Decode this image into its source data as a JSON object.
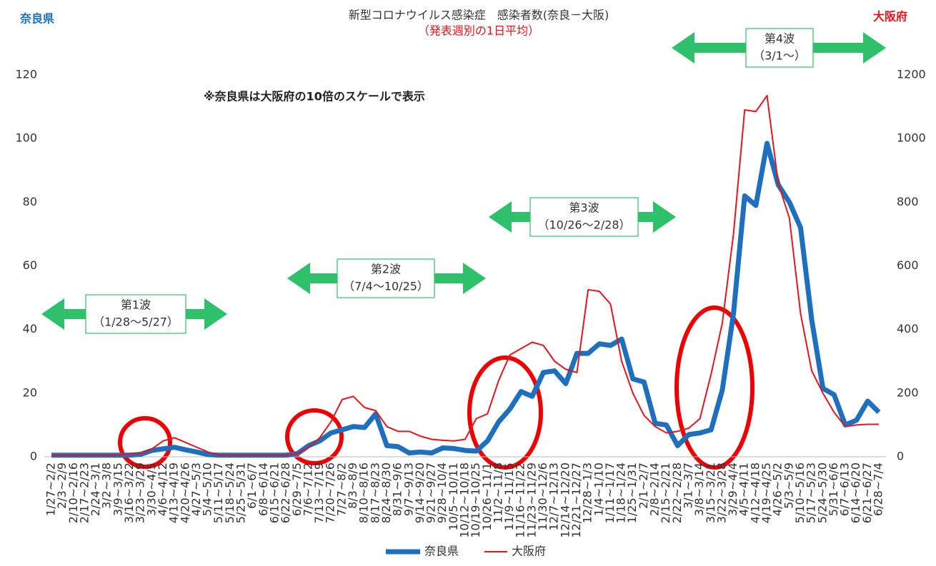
{
  "chart_data": {
    "type": "line",
    "title": "新型コロナウイルス感染症　感染者数(奈良－大阪)",
    "subtitle": "（発表週別の1日平均）",
    "ylabel": "奈良県",
    "y2label": "大阪府",
    "note": "※奈良県は大阪府の10倍のスケールで表示",
    "annotations": [
      {
        "label": "第1波",
        "period": "（1/28～5/27）"
      },
      {
        "label": "第2波",
        "period": "（7/4～10/25）"
      },
      {
        "label": "第3波",
        "period": "（10/26～2/28）"
      },
      {
        "label": "第4波",
        "period": "（3/1～）"
      }
    ],
    "categories": [
      "1/27~2/2",
      "2/3~2/9",
      "2/10~2/16",
      "2/17~2/23",
      "2/24~3/1",
      "3/2~3/8",
      "3/9~3/15",
      "3/16~3/22",
      "3/23~3/29",
      "3/30~4/5",
      "4/6~4/12",
      "4/13~4/19",
      "4/20~4/26",
      "4/27~5/3",
      "5/4~5/10",
      "5/11~5/17",
      "5/18~5/24",
      "5/25~5/31",
      "6/1~6/7",
      "6/8~6/14",
      "6/15~6/21",
      "6/22~6/28",
      "6/29~7/5",
      "7/6~7/12",
      "7/13~7/19",
      "7/20~7/26",
      "7/27~8/2",
      "8/3~8/9",
      "8/10~8/16",
      "8/17~8/23",
      "8/24~8/30",
      "8/31~9/6",
      "9/7~9/13",
      "9/14~9/20",
      "9/21~9/27",
      "9/28~10/4",
      "10/5~10/11",
      "10/12~10/18",
      "10/19~10/25",
      "10/26~11/1",
      "11/2~11/8",
      "11/9~11/15",
      "11/16~11/22",
      "11/23~11/29",
      "11/30~12/6",
      "12/7~12/13",
      "12/14~12/20",
      "12/21~12/27",
      "12/28~1/3",
      "1/4~1/10",
      "1/11~1/17",
      "1/18~1/24",
      "1/25~1/31",
      "2/1~2/7",
      "2/8~2/14",
      "2/15~2/21",
      "2/22~2/28",
      "3/1~3/7",
      "3/8~3/14",
      "3/15~3/21",
      "3/22~3/28",
      "3/29~4/4",
      "4/5~4/11",
      "4/12~4/18",
      "4/19~4/25",
      "4/26~5/2",
      "5/3~5/9",
      "5/10~5/16",
      "5/17~5/23",
      "5/24~5/30",
      "5/31~6/6",
      "6/7~6/13",
      "6/14~6/20",
      "6/21~6/27",
      "6/28~7/4"
    ],
    "series": [
      {
        "name": "奈良県",
        "color": "#1f6fbf",
        "values": [
          0.5,
          0.5,
          0.5,
          0.5,
          0.5,
          0.5,
          0.5,
          0.5,
          0.8,
          2,
          2.5,
          3,
          2.2,
          1.5,
          0.7,
          0.5,
          0.5,
          0.5,
          0.5,
          0.5,
          0.5,
          0.5,
          1,
          3.5,
          5,
          7.5,
          8.5,
          9.5,
          9.2,
          13.5,
          3.5,
          3.2,
          1.2,
          1.5,
          1.2,
          2.8,
          2.6,
          2,
          1.8,
          5,
          11,
          15,
          20.5,
          19,
          26.5,
          27,
          23,
          32.5,
          32.5,
          35.5,
          35,
          37,
          24.5,
          23.5,
          10.5,
          10,
          3.5,
          7,
          7.5,
          8.5,
          21,
          45,
          82,
          79,
          98.5,
          85.5,
          80,
          72,
          43,
          21.5,
          19.5,
          10,
          11.5,
          17.5,
          14
        ]
      },
      {
        "name": "大阪府",
        "color": "#e8141b",
        "axis": "y2",
        "values": [
          5,
          5,
          5,
          5,
          5,
          5,
          5,
          10,
          10,
          25,
          50,
          60,
          45,
          30,
          15,
          5,
          5,
          5,
          5,
          5,
          5,
          5,
          10,
          30,
          60,
          110,
          180,
          190,
          155,
          145,
          95,
          80,
          80,
          65,
          55,
          52,
          50,
          55,
          120,
          135,
          240,
          320,
          340,
          360,
          350,
          300,
          275,
          265,
          525,
          520,
          480,
          300,
          200,
          130,
          95,
          75,
          80,
          90,
          120,
          260,
          420,
          700,
          1090,
          1085,
          1135,
          860,
          750,
          450,
          270,
          200,
          140,
          95,
          100,
          102,
          102
        ]
      }
    ],
    "ylim": [
      0,
      120
    ],
    "yticks": [
      0,
      20,
      40,
      60,
      80,
      100,
      120
    ],
    "y2lim": [
      0,
      1200
    ],
    "y2ticks": [
      0,
      200,
      400,
      600,
      800,
      1000,
      1200
    ],
    "grid": false
  }
}
